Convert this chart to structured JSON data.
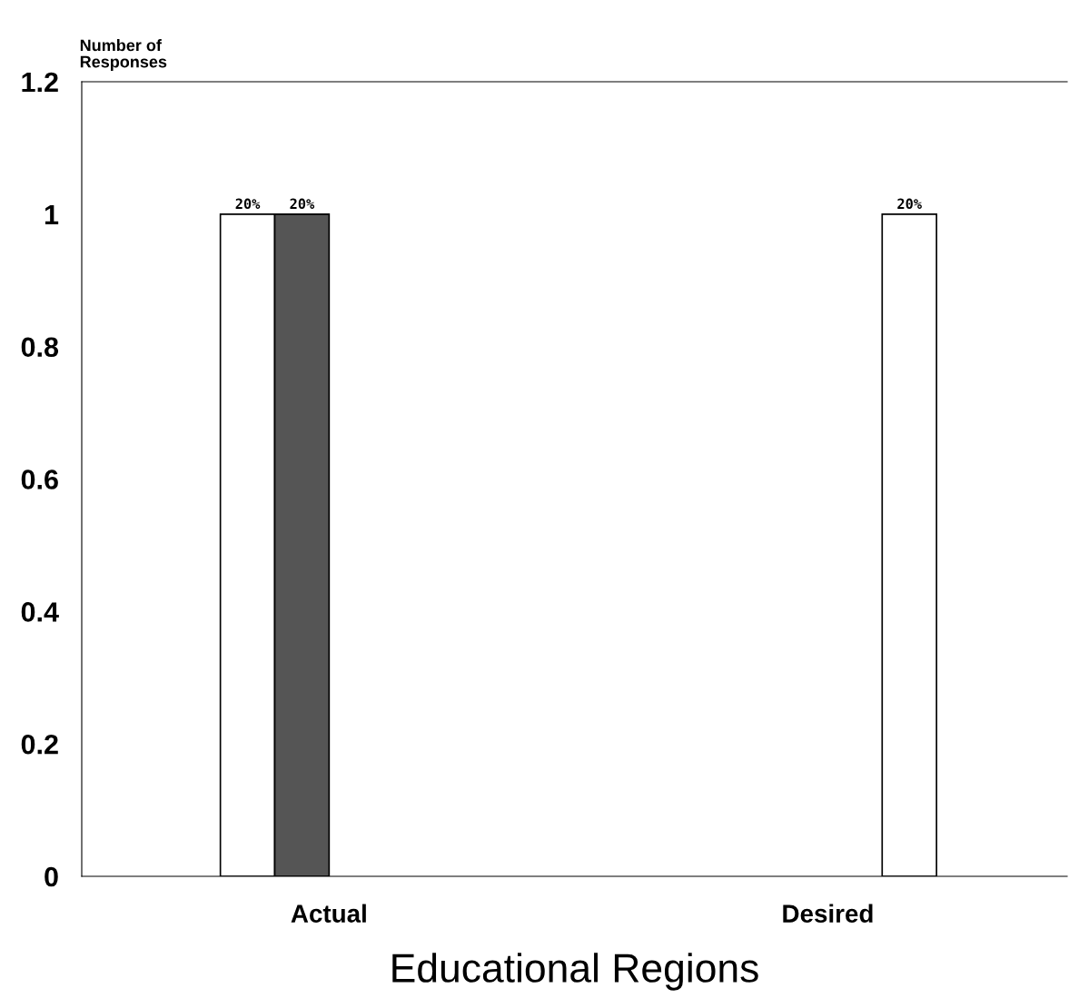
{
  "chart_data": {
    "type": "bar",
    "ylabel": "Number of\nResponses",
    "xlabel": "Educational Regions",
    "categories": [
      "Actual",
      "Desired"
    ],
    "series": [
      {
        "color": "#ffffff",
        "values": [
          1,
          0
        ]
      },
      {
        "color": "#555555",
        "values": [
          1,
          0
        ]
      },
      {
        "color": "#ffffff",
        "values": [
          0,
          0
        ]
      },
      {
        "color": "#ffffff",
        "values": [
          0,
          1
        ]
      }
    ],
    "annotations": [
      "20%",
      "20%",
      "20%"
    ],
    "ylim": [
      0,
      1.2
    ],
    "yticks": [
      0,
      0.2,
      0.4,
      0.6,
      0.8,
      1,
      1.2
    ],
    "grid": false,
    "legend": false
  }
}
